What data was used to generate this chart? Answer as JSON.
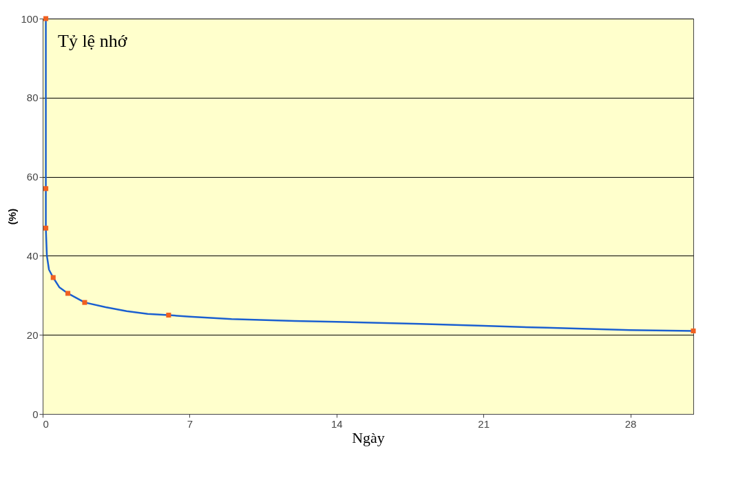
{
  "chart_data": {
    "type": "line",
    "xlabel": "Ngày",
    "ylabel": "(%)",
    "annotations": [
      "Tỷ lệ nhớ"
    ],
    "xlim": [
      0,
      31
    ],
    "xticks": [
      0,
      7,
      14,
      21,
      28
    ],
    "ylim": [
      0,
      100
    ],
    "yticks": [
      0,
      20,
      40,
      60,
      80,
      100
    ],
    "grid": "y",
    "series": [
      {
        "color": "#1a5fd0",
        "marker": "none",
        "x": [
          0.15,
          0.15,
          0.15,
          0.2,
          0.3,
          0.5,
          0.8,
          1.2,
          2,
          3,
          4,
          5,
          6,
          7,
          9,
          12,
          14,
          18,
          21,
          24,
          28,
          31
        ],
        "values": [
          100,
          57,
          47,
          40,
          36.5,
          34.5,
          32,
          30.5,
          28.2,
          27,
          26,
          25.3,
          25,
          24.6,
          24,
          23.5,
          23.3,
          22.8,
          22.3,
          21.8,
          21.2,
          21
        ]
      },
      {
        "type": "scatter",
        "color": "#f06020",
        "marker": "square",
        "x": [
          0.15,
          0.15,
          0.15,
          0.5,
          1.2,
          2,
          6,
          31
        ],
        "values": [
          100,
          57,
          47,
          34.5,
          30.5,
          28.2,
          25,
          21
        ]
      }
    ]
  }
}
